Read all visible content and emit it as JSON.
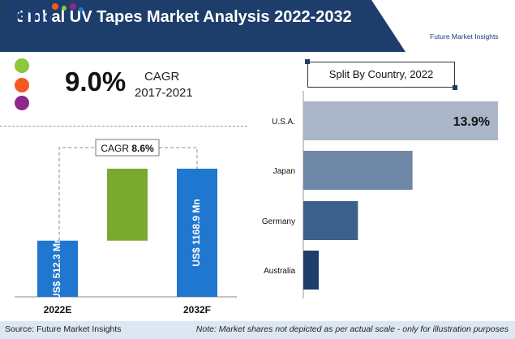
{
  "header": {
    "title": "Global UV Tapes Market Analysis 2022-2032",
    "logo_text": "Future Market Insights",
    "colors": {
      "band": "#1d3e6a",
      "logo": "#1a3d7a"
    }
  },
  "cagr_history": {
    "value": "9.0%",
    "label": "CAGR",
    "period": "2017-2021",
    "dots": [
      "#8dc63f",
      "#f15a24",
      "#8b2a8b"
    ]
  },
  "split": {
    "label": "Split By Country, 2022"
  },
  "footer": {
    "source": "Source: Future Market Insights",
    "note": "Note: Market shares not depicted as per actual scale - only for illustration purposes"
  },
  "chart_data": [
    {
      "type": "bar",
      "categories": [
        "2022E",
        "2032F"
      ],
      "series": [
        {
          "values": [
            512.3,
            1168.9
          ]
        }
      ],
      "data_labels": [
        "US$ 512.3 Mn",
        "US$ 1168.9 Mn"
      ],
      "annotation": {
        "label": "CAGR",
        "value": "8.6%"
      },
      "colors": {
        "bar": "#1f77d0",
        "increment": "#7ba82e"
      }
    },
    {
      "type": "bar",
      "orientation": "horizontal",
      "categories": [
        "U.S.A.",
        "Japan",
        "Germany",
        "Australia"
      ],
      "series": [
        {
          "values": [
            13.9,
            7.8,
            3.9,
            1.1
          ]
        }
      ],
      "data_labels": [
        "13.9%"
      ],
      "colors": [
        "#aab6c8",
        "#6f87a6",
        "#3c5f8c",
        "#1d3e6a"
      ]
    }
  ]
}
